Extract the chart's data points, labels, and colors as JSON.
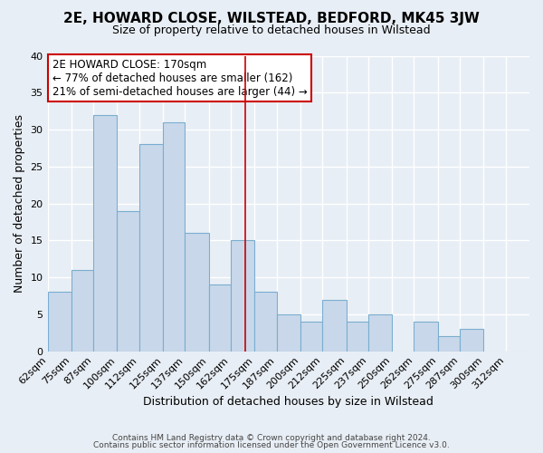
{
  "title": "2E, HOWARD CLOSE, WILSTEAD, BEDFORD, MK45 3JW",
  "subtitle": "Size of property relative to detached houses in Wilstead",
  "xlabel": "Distribution of detached houses by size in Wilstead",
  "ylabel": "Number of detached properties",
  "bin_labels": [
    "62sqm",
    "75sqm",
    "87sqm",
    "100sqm",
    "112sqm",
    "125sqm",
    "137sqm",
    "150sqm",
    "162sqm",
    "175sqm",
    "187sqm",
    "200sqm",
    "212sqm",
    "225sqm",
    "237sqm",
    "250sqm",
    "262sqm",
    "275sqm",
    "287sqm",
    "300sqm",
    "312sqm"
  ],
  "bin_edges": [
    62,
    75,
    87,
    100,
    112,
    125,
    137,
    150,
    162,
    175,
    187,
    200,
    212,
    225,
    237,
    250,
    262,
    275,
    287,
    300,
    312,
    325
  ],
  "bar_heights": [
    8,
    11,
    32,
    19,
    28,
    31,
    16,
    9,
    15,
    8,
    5,
    4,
    7,
    4,
    5,
    0,
    4,
    2,
    3,
    0,
    0
  ],
  "bar_color": "#c8d8ea",
  "bar_edgecolor": "#7aaed0",
  "ylim": [
    0,
    40
  ],
  "yticks": [
    0,
    5,
    10,
    15,
    20,
    25,
    30,
    35,
    40
  ],
  "property_line_x": 170,
  "property_line_color": "#cc0000",
  "annotation_title": "2E HOWARD CLOSE: 170sqm",
  "annotation_line1": "← 77% of detached houses are smaller (162)",
  "annotation_line2": "21% of semi-detached houses are larger (44) →",
  "annotation_box_edgecolor": "#cc0000",
  "annotation_box_facecolor": "white",
  "footer_line1": "Contains HM Land Registry data © Crown copyright and database right 2024.",
  "footer_line2": "Contains public sector information licensed under the Open Government Licence v3.0.",
  "background_color": "#e8eef5",
  "plot_background": "#e8eef5",
  "grid_color": "white",
  "title_fontsize": 11,
  "subtitle_fontsize": 9
}
